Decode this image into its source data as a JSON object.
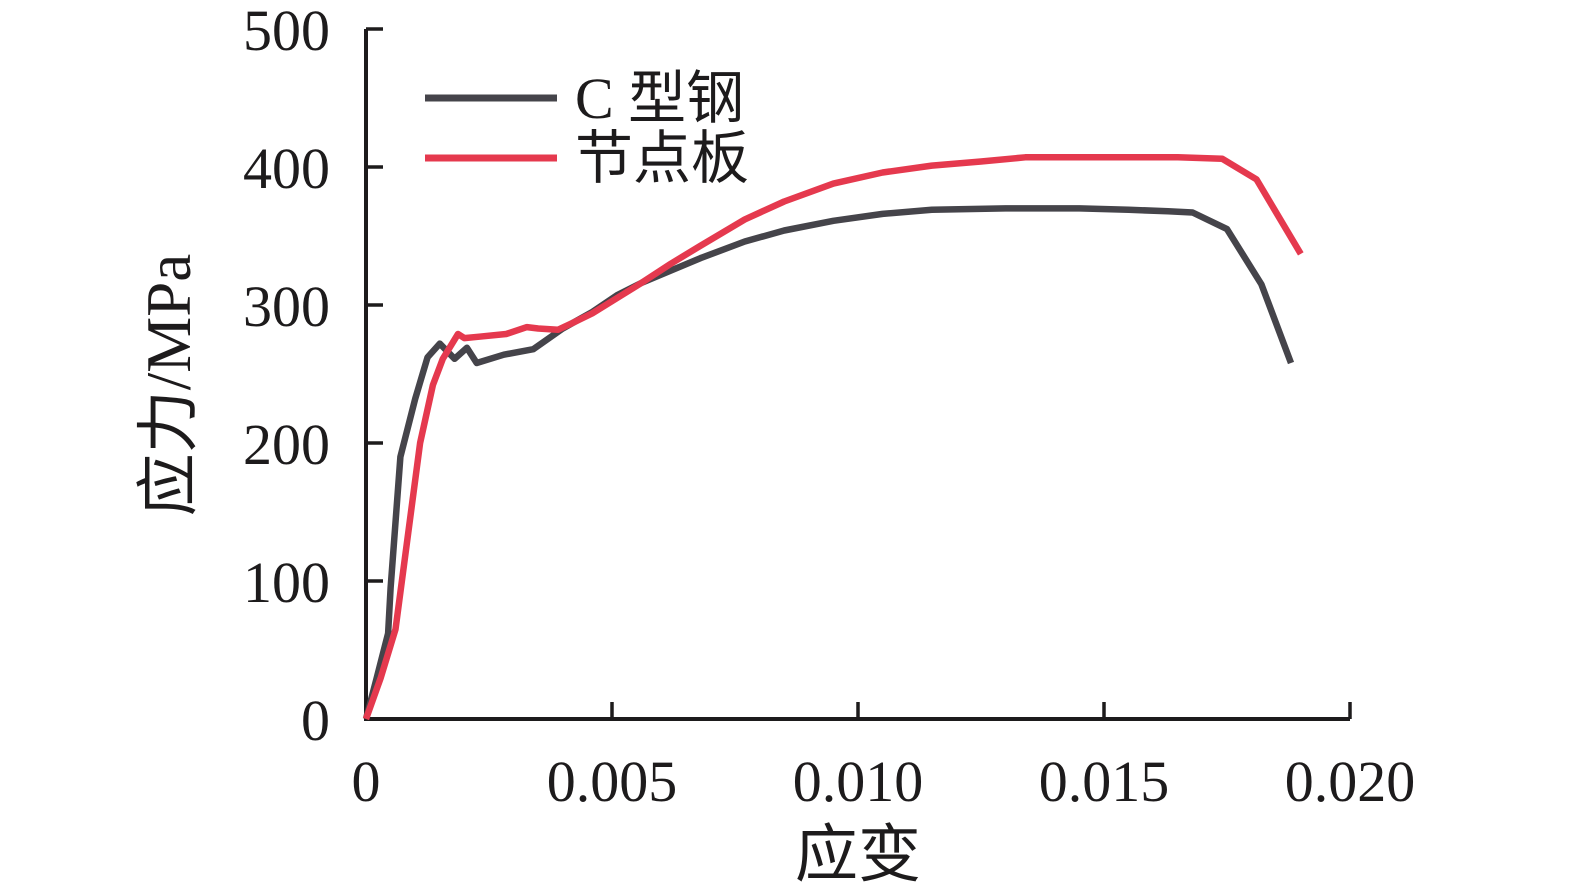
{
  "figure": {
    "background": "#ffffff",
    "axis_color": "#1d1b1c",
    "text_color": "#1d1b1c"
  },
  "chart_data": {
    "type": "line",
    "title": "",
    "xlabel": "应变",
    "ylabel": "应力/MPa",
    "xlim": [
      0,
      0.02
    ],
    "ylim": [
      0,
      500
    ],
    "xticks": [
      0,
      0.005,
      0.01,
      0.015,
      0.02
    ],
    "xtick_labels": [
      "0",
      "0.005",
      "0.010",
      "0.015",
      "0.020"
    ],
    "yticks": [
      0,
      100,
      200,
      300,
      400,
      500
    ],
    "ytick_labels": [
      "0",
      "100",
      "200",
      "300",
      "400",
      "500"
    ],
    "grid": false,
    "legend_position": "upper-left-inside",
    "series": [
      {
        "name": "C 型钢",
        "color": "#45444a",
        "points": [
          [
            0,
            0
          ],
          [
            0.00022,
            30
          ],
          [
            0.00045,
            62
          ],
          [
            0.0005,
            95
          ],
          [
            0.0007,
            190
          ],
          [
            0.001,
            232
          ],
          [
            0.00125,
            262
          ],
          [
            0.0015,
            272
          ],
          [
            0.0018,
            261
          ],
          [
            0.00205,
            269
          ],
          [
            0.00225,
            258
          ],
          [
            0.0028,
            264
          ],
          [
            0.0034,
            268
          ],
          [
            0.004,
            283
          ],
          [
            0.0046,
            295
          ],
          [
            0.0051,
            307
          ],
          [
            0.0056,
            316
          ],
          [
            0.0062,
            325
          ],
          [
            0.0068,
            334
          ],
          [
            0.0077,
            346
          ],
          [
            0.0085,
            354
          ],
          [
            0.0095,
            361
          ],
          [
            0.0105,
            366
          ],
          [
            0.0115,
            369
          ],
          [
            0.013,
            370
          ],
          [
            0.0145,
            370
          ],
          [
            0.0155,
            369
          ],
          [
            0.0163,
            368
          ],
          [
            0.0168,
            367
          ],
          [
            0.0175,
            355
          ],
          [
            0.0182,
            315
          ],
          [
            0.0188,
            258
          ]
        ]
      },
      {
        "name": "节点板",
        "color": "#e5394e",
        "points": [
          [
            0,
            0
          ],
          [
            0.0003,
            30
          ],
          [
            0.0006,
            65
          ],
          [
            0.0011,
            200
          ],
          [
            0.00136,
            242
          ],
          [
            0.00156,
            261
          ],
          [
            0.00187,
            279
          ],
          [
            0.002,
            276
          ],
          [
            0.0023,
            277
          ],
          [
            0.00285,
            279
          ],
          [
            0.00327,
            284
          ],
          [
            0.0035,
            283
          ],
          [
            0.0039,
            282
          ],
          [
            0.0042,
            287
          ],
          [
            0.0046,
            294
          ],
          [
            0.0051,
            305
          ],
          [
            0.0056,
            316
          ],
          [
            0.0062,
            330
          ],
          [
            0.0068,
            343
          ],
          [
            0.0077,
            362
          ],
          [
            0.0085,
            375
          ],
          [
            0.0095,
            388
          ],
          [
            0.0105,
            396
          ],
          [
            0.0115,
            401
          ],
          [
            0.0125,
            404
          ],
          [
            0.0134,
            407
          ],
          [
            0.015,
            407
          ],
          [
            0.0165,
            407
          ],
          [
            0.0174,
            406
          ],
          [
            0.0181,
            391
          ],
          [
            0.019,
            337
          ]
        ]
      }
    ]
  }
}
